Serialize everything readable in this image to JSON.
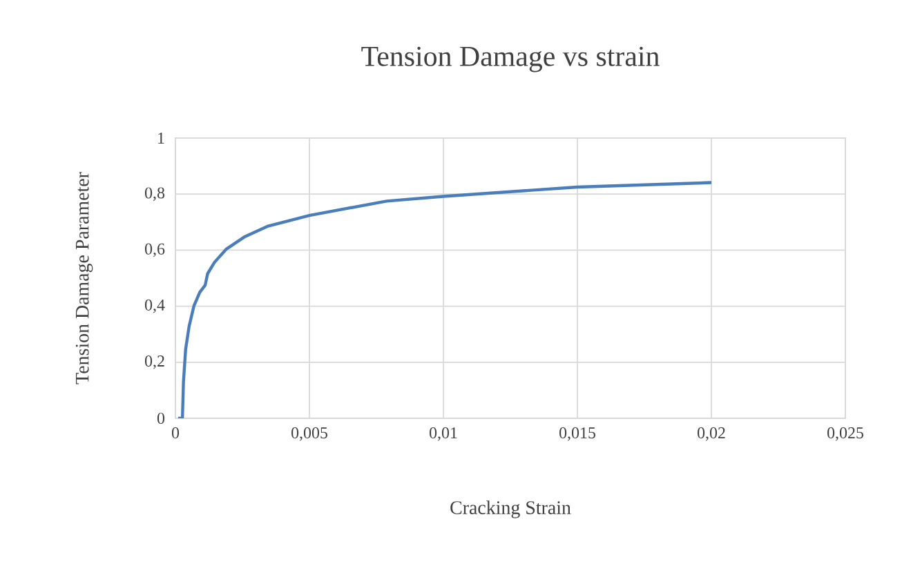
{
  "chart_data": {
    "type": "line",
    "title": "Tension Damage vs strain",
    "xlabel": "Cracking Strain",
    "ylabel": "Tension Damage Parameter",
    "xlim": [
      0,
      0.025
    ],
    "xticks": [
      0,
      {
        "value": 0.005,
        "label": "0,005"
      },
      {
        "value": 0.01,
        "label": "0,01"
      },
      {
        "value": 0.015,
        "label": "0,015"
      },
      {
        "value": 0.02,
        "label": "0,02"
      },
      {
        "value": 0.025,
        "label": "0,025"
      }
    ],
    "ylim": [
      0,
      1
    ],
    "yticks": [
      0,
      {
        "value": 0.2,
        "label": "0,2"
      },
      {
        "value": 0.4,
        "label": "0,4"
      },
      {
        "value": 0.6,
        "label": "0,6"
      },
      {
        "value": 0.8,
        "label": "0,8"
      },
      1
    ],
    "grid": true,
    "marker": "none",
    "line_style": "solid",
    "series": [
      {
        "color": "#4a7ebb",
        "x": [
          0.0001,
          0.00026,
          0.0003,
          0.00038,
          0.00051,
          0.00069,
          0.00091,
          0.00111,
          0.0012,
          0.00146,
          0.00189,
          0.00257,
          0.00343,
          0.005,
          0.00788,
          0.01,
          0.015,
          0.0175,
          0.02
        ],
        "values": [
          0,
          0,
          0.131,
          0.246,
          0.328,
          0.401,
          0.45,
          0.475,
          0.516,
          0.557,
          0.603,
          0.647,
          0.685,
          0.724,
          0.775,
          0.792,
          0.825,
          0.833,
          0.841
        ]
      }
    ]
  }
}
